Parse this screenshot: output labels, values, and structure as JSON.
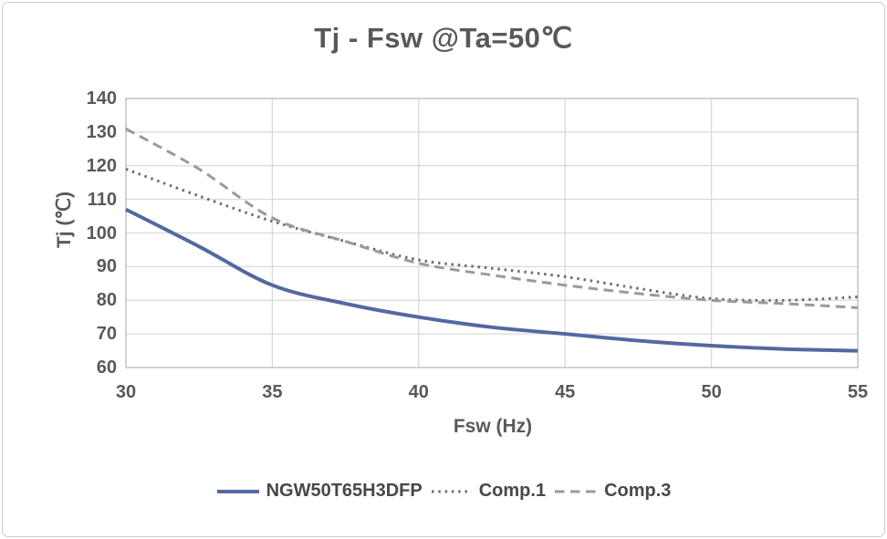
{
  "chart_data": {
    "type": "line",
    "title": "Tj - Fsw @Ta=50℃",
    "xlabel": "Fsw (Hz)",
    "ylabel": "Tj (℃)",
    "xlim": [
      30,
      55
    ],
    "ylim": [
      60,
      140
    ],
    "x_ticks": [
      30,
      35,
      40,
      45,
      50,
      55
    ],
    "y_ticks": [
      140,
      130,
      120,
      110,
      100,
      90,
      80,
      70,
      60
    ],
    "grid": true,
    "legend_position": "bottom",
    "x": [
      30,
      32.5,
      35,
      37.5,
      40,
      42.5,
      45,
      47.5,
      50,
      52.5,
      55
    ],
    "series": [
      {
        "name": "NGW50T65H3DFP",
        "style": "solid",
        "color": "#5567a2",
        "width": 4,
        "values": [
          107,
          96,
          84.5,
          79,
          75,
          72,
          70,
          68,
          66.5,
          65.5,
          65
        ]
      },
      {
        "name": "Comp.1",
        "style": "dotted",
        "color": "#6e6e6e",
        "width": 3,
        "values": [
          119,
          111,
          103.5,
          97.5,
          92,
          89.5,
          87,
          83.5,
          80.5,
          80,
          81
        ]
      },
      {
        "name": "Comp.3",
        "style": "dashed",
        "color": "#9a9a9a",
        "width": 3,
        "values": [
          131,
          119,
          104.5,
          97.5,
          91,
          87.5,
          84.5,
          82,
          80,
          79,
          77.8
        ]
      }
    ]
  },
  "colors": {
    "grid": "#d9d9d9",
    "plot_border": "#bfbfbf",
    "text": "#595959",
    "background": "#ffffff"
  }
}
